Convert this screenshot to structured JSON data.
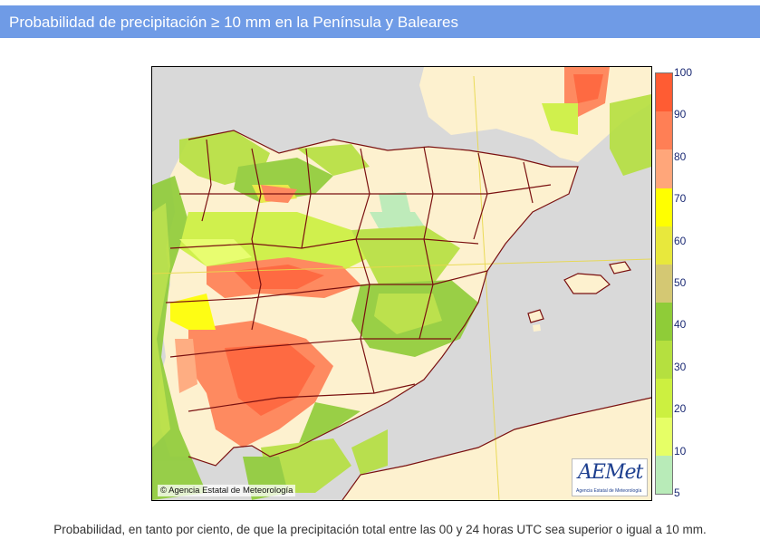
{
  "header": {
    "title": "Probabilidad de precipitación ≥ 10 mm en la Península y Baleares"
  },
  "map": {
    "copyright": "Agencia Estatal de Meteorología",
    "logo": {
      "word": "AEMet",
      "subtitle": "Agencia Estatal de Meteorología"
    }
  },
  "legend": {
    "unit": "%",
    "labels": [
      "100",
      "90",
      "80",
      "70",
      "60",
      "50",
      "40",
      "30",
      "20",
      "10",
      "5"
    ],
    "colors": [
      "#ff5c33",
      "#ff7f55",
      "#ffa67a",
      "#ffff00",
      "#e8e83c",
      "#d4c873",
      "#8fcc38",
      "#b5e03f",
      "#ccf040",
      "#e6ff66",
      "#b8ebb8"
    ]
  },
  "colors": {
    "sea": "#d9d9d9",
    "land": "#fdf1cf",
    "borders": "#7a1010",
    "graticule": "#e8d84a"
  },
  "caption": "Probabilidad, en tanto por ciento, de que la precipitación total entre las 00 y 24 horas UTC sea superior o igual a 10 mm."
}
